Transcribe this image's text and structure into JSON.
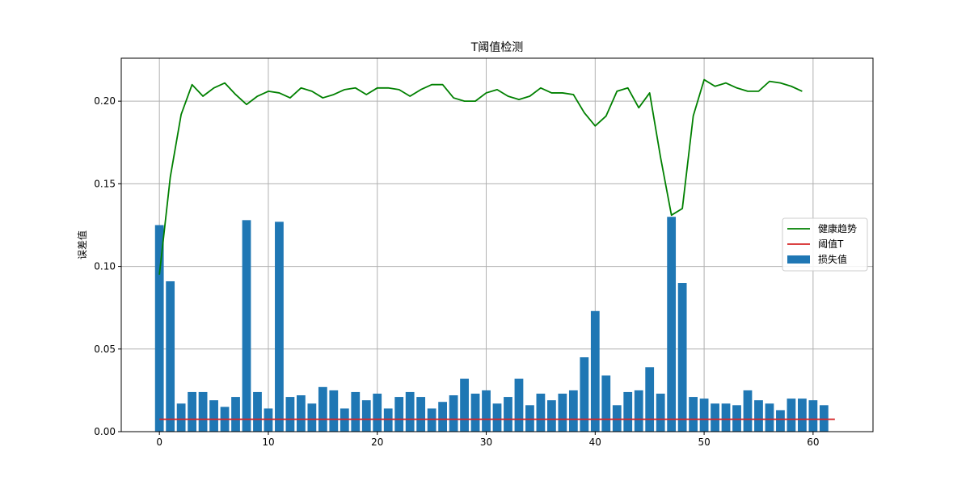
{
  "chart_data": {
    "type": "bar",
    "title": "T阈值检测",
    "xlabel": "",
    "ylabel": "误差值",
    "xlim": [
      -3.5,
      65.5
    ],
    "ylim": [
      0,
      0.226
    ],
    "xticks": [
      0,
      10,
      20,
      30,
      40,
      50,
      60
    ],
    "yticks": [
      0.0,
      0.05,
      0.1,
      0.15,
      0.2
    ],
    "ytick_labels": [
      "0.00",
      "0.05",
      "0.10",
      "0.15",
      "0.20"
    ],
    "grid": true,
    "legend_position": "center-right",
    "colors": {
      "bar": "#1f77b4",
      "trend": "#008000",
      "threshold": "#d62728"
    },
    "series": [
      {
        "name": "损失值",
        "kind": "bar",
        "x": [
          0,
          1,
          2,
          3,
          4,
          5,
          6,
          7,
          8,
          9,
          10,
          11,
          12,
          13,
          14,
          15,
          16,
          17,
          18,
          19,
          20,
          21,
          22,
          23,
          24,
          25,
          26,
          27,
          28,
          29,
          30,
          31,
          32,
          33,
          34,
          35,
          36,
          37,
          38,
          39,
          40,
          41,
          42,
          43,
          44,
          45,
          46,
          47,
          48,
          49,
          50,
          51,
          52,
          53,
          54,
          55,
          56,
          57,
          58,
          59,
          60,
          61
        ],
        "values": [
          0.125,
          0.091,
          0.017,
          0.024,
          0.024,
          0.019,
          0.015,
          0.021,
          0.128,
          0.024,
          0.014,
          0.127,
          0.021,
          0.022,
          0.017,
          0.027,
          0.025,
          0.014,
          0.024,
          0.019,
          0.023,
          0.014,
          0.021,
          0.024,
          0.021,
          0.014,
          0.018,
          0.022,
          0.032,
          0.023,
          0.025,
          0.017,
          0.021,
          0.032,
          0.016,
          0.023,
          0.019,
          0.023,
          0.025,
          0.045,
          0.073,
          0.034,
          0.016,
          0.024,
          0.025,
          0.039,
          0.023,
          0.13,
          0.09,
          0.021,
          0.02,
          0.017,
          0.017,
          0.016,
          0.025,
          0.019,
          0.017,
          0.013,
          0.02,
          0.02,
          0.019,
          0.016
        ]
      },
      {
        "name": "健康趋势",
        "kind": "line",
        "x": [
          0,
          1,
          2,
          3,
          4,
          5,
          6,
          7,
          8,
          9,
          10,
          11,
          12,
          13,
          14,
          15,
          16,
          17,
          18,
          19,
          20,
          21,
          22,
          23,
          24,
          25,
          26,
          27,
          28,
          29,
          30,
          31,
          32,
          33,
          34,
          35,
          36,
          37,
          38,
          39,
          40,
          41,
          42,
          43,
          44,
          45,
          46,
          47,
          48,
          49,
          50,
          51,
          52,
          53,
          54,
          55,
          56,
          57,
          58,
          59
        ],
        "values": [
          0.095,
          0.154,
          0.192,
          0.21,
          0.203,
          0.208,
          0.211,
          0.204,
          0.198,
          0.203,
          0.206,
          0.205,
          0.202,
          0.208,
          0.206,
          0.202,
          0.204,
          0.207,
          0.208,
          0.204,
          0.208,
          0.208,
          0.207,
          0.203,
          0.207,
          0.21,
          0.21,
          0.202,
          0.2,
          0.2,
          0.205,
          0.207,
          0.203,
          0.201,
          0.203,
          0.208,
          0.205,
          0.205,
          0.204,
          0.193,
          0.185,
          0.191,
          0.206,
          0.208,
          0.196,
          0.205,
          0.166,
          0.131,
          0.135,
          0.191,
          0.213,
          0.209,
          0.211,
          0.208,
          0.206,
          0.206,
          0.212,
          0.211,
          0.209,
          0.206
        ]
      },
      {
        "name": "阈值T",
        "kind": "line",
        "x": [
          0,
          62
        ],
        "values": [
          0.0075,
          0.0075
        ]
      }
    ]
  }
}
